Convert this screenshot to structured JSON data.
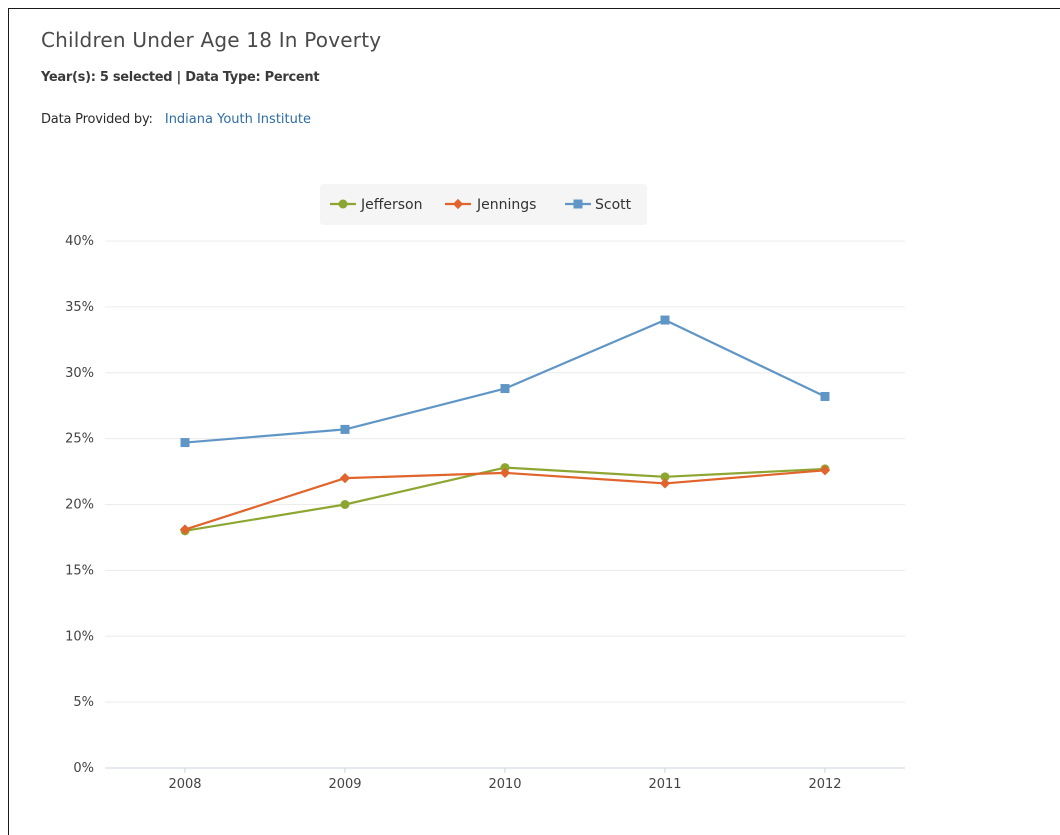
{
  "header": {
    "title": "Children Under Age 18 In Poverty",
    "subtitle": "Year(s): 5 selected | Data Type: Percent",
    "provider_label": "Data Provided by:",
    "provider_link": "Indiana Youth Institute"
  },
  "chart_data": {
    "type": "line",
    "x": [
      "2008",
      "2009",
      "2010",
      "2011",
      "2012"
    ],
    "ylim": [
      0,
      40
    ],
    "yticks": [
      0,
      5,
      10,
      15,
      20,
      25,
      30,
      35,
      40
    ],
    "ytick_suffix": "%",
    "grid": true,
    "legend_position": "top-center",
    "series": [
      {
        "name": "Jefferson",
        "values": [
          18.0,
          20.0,
          22.8,
          22.1,
          22.7
        ],
        "color": "#8da632",
        "marker": "circle"
      },
      {
        "name": "Jennings",
        "values": [
          18.1,
          22.0,
          22.4,
          21.6,
          22.6
        ],
        "color": "#e0642c",
        "marker": "diamond"
      },
      {
        "name": "Scott",
        "values": [
          24.7,
          25.7,
          28.8,
          34.0,
          28.2
        ],
        "color": "#6096c6",
        "marker": "square"
      }
    ]
  }
}
